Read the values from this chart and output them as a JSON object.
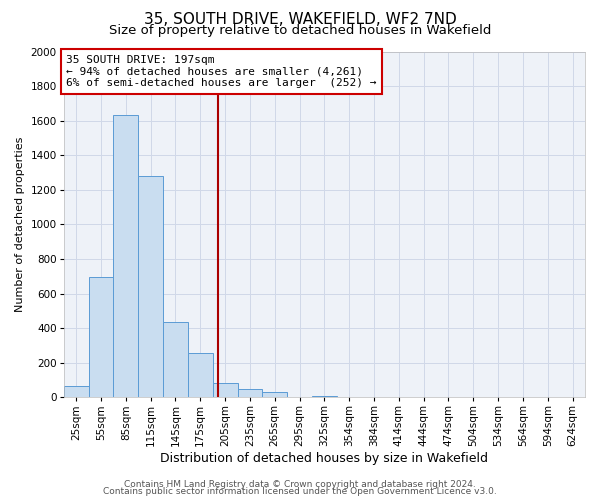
{
  "title": "35, SOUTH DRIVE, WAKEFIELD, WF2 7ND",
  "subtitle": "Size of property relative to detached houses in Wakefield",
  "xlabel": "Distribution of detached houses by size in Wakefield",
  "ylabel": "Number of detached properties",
  "bar_labels": [
    "25sqm",
    "55sqm",
    "85sqm",
    "115sqm",
    "145sqm",
    "175sqm",
    "205sqm",
    "235sqm",
    "265sqm",
    "295sqm",
    "325sqm",
    "354sqm",
    "384sqm",
    "414sqm",
    "444sqm",
    "474sqm",
    "504sqm",
    "534sqm",
    "564sqm",
    "594sqm",
    "624sqm"
  ],
  "bar_values": [
    65,
    695,
    1630,
    1280,
    435,
    255,
    85,
    50,
    30,
    0,
    10,
    0,
    0,
    0,
    0,
    0,
    0,
    0,
    0,
    0,
    0
  ],
  "bar_color": "#c9ddf0",
  "bar_edge_color": "#5b9bd5",
  "grid_color": "#d0d8e8",
  "background_color": "#eef2f8",
  "vline_color": "#aa0000",
  "annotation_line0": "35 SOUTH DRIVE: 197sqm",
  "annotation_line1": "← 94% of detached houses are smaller (4,261)",
  "annotation_line2": "6% of semi-detached houses are larger  (252) →",
  "annotation_box_color": "#ffffff",
  "annotation_box_edge": "#cc0000",
  "ylim": [
    0,
    2000
  ],
  "yticks": [
    0,
    200,
    400,
    600,
    800,
    1000,
    1200,
    1400,
    1600,
    1800,
    2000
  ],
  "footer1": "Contains HM Land Registry data © Crown copyright and database right 2024.",
  "footer2": "Contains public sector information licensed under the Open Government Licence v3.0.",
  "title_fontsize": 11,
  "subtitle_fontsize": 9.5,
  "xlabel_fontsize": 9,
  "ylabel_fontsize": 8,
  "tick_fontsize": 7.5,
  "footer_fontsize": 6.5
}
